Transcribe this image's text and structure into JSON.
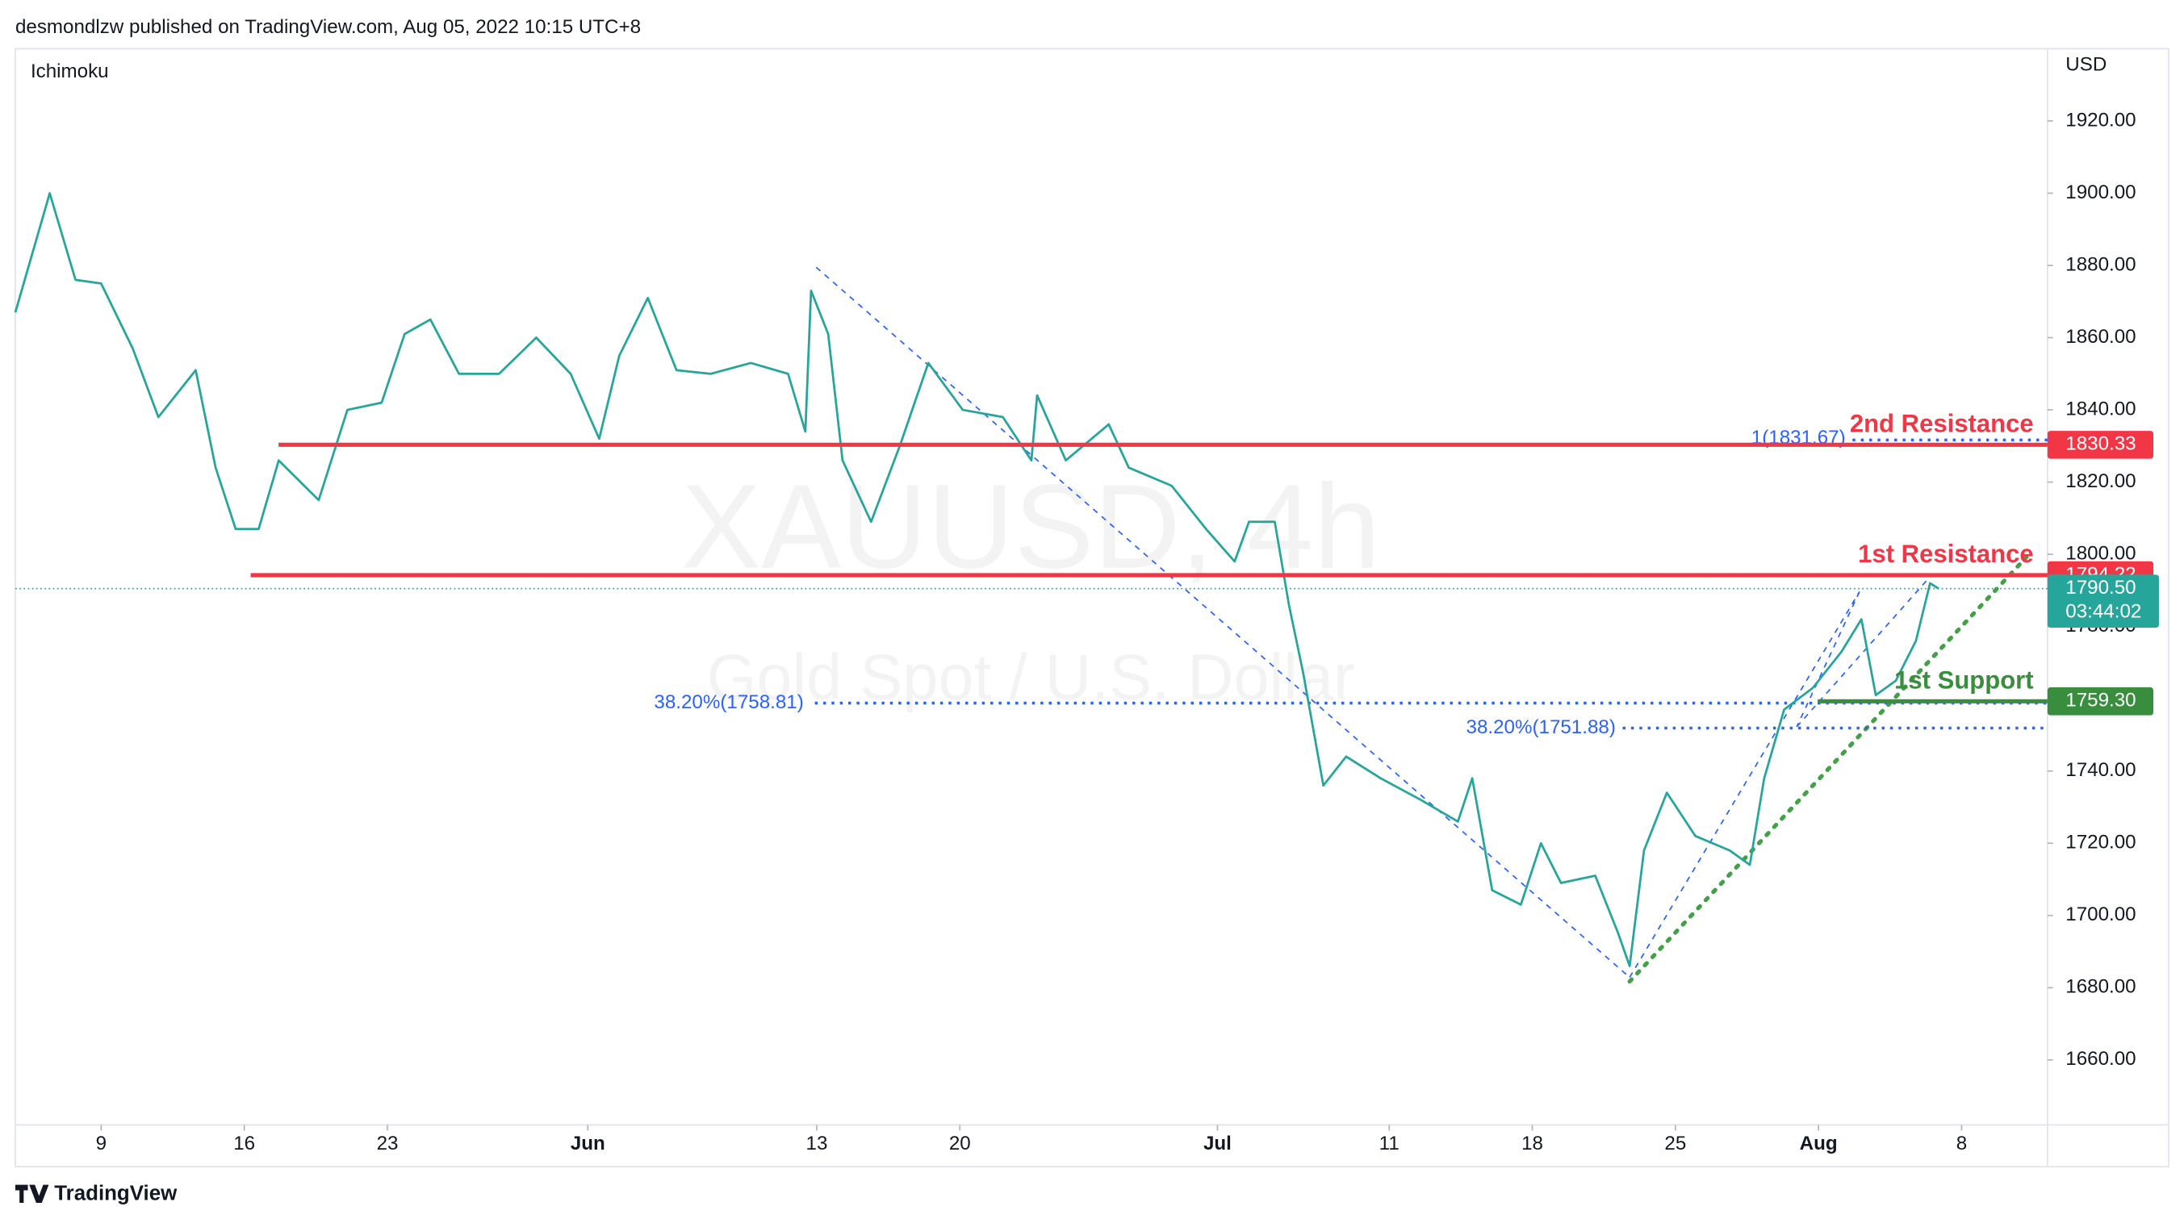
{
  "header": "desmondlzw published on TradingView.com, Aug 05, 2022 10:15 UTC+8",
  "footer": "TradingView",
  "chart_data": {
    "type": "line",
    "title": "XAUUSD, 4h",
    "subtitle": "Gold Spot / U.S. Dollar",
    "indicator": "Ichimoku",
    "currency": "USD",
    "color": "#26a69a",
    "x": [
      -3,
      -1.8,
      -0.9,
      0,
      1.1,
      2,
      3.3,
      4,
      4.7,
      5.5,
      6.2,
      7.6,
      8.6,
      9.8,
      10.6,
      11.5,
      12.5,
      13.9,
      15.2,
      16.4,
      17.4,
      18.1,
      19.1,
      20.1,
      21.3,
      22.7,
      24,
      24.6,
      24.8,
      25.4,
      25.9,
      26.9,
      27.9,
      28.9,
      30.1,
      31.5,
      32.5,
      32.7,
      33.7,
      35.2,
      35.9,
      37.4,
      38.6,
      39.6,
      40.1,
      41,
      41.5,
      42,
      42.7,
      43.5,
      44.7,
      46.1,
      47.4,
      47.9,
      48.6,
      49.6,
      50.3,
      51,
      52.2,
      53,
      53.4,
      53.9,
      54.7,
      55.7,
      56.9,
      57.6,
      58.1,
      58.8,
      59.8,
      60.8,
      61.5,
      62,
      62.7,
      63.4,
      63.9,
      64.2
    ],
    "values": [
      1867,
      1900,
      1876,
      1875,
      1857,
      1838,
      1851,
      1824,
      1807,
      1807,
      1826,
      1815,
      1840,
      1842,
      1861,
      1865,
      1850,
      1850,
      1860,
      1850,
      1832,
      1855,
      1871,
      1851,
      1850,
      1853,
      1850,
      1834,
      1873,
      1861,
      1826,
      1809,
      1830,
      1853,
      1840,
      1838,
      1826,
      1844,
      1826,
      1836,
      1824,
      1819,
      1807,
      1798,
      1809,
      1809,
      1786,
      1767,
      1736,
      1744,
      1738,
      1732,
      1726,
      1738,
      1707,
      1703,
      1720,
      1709,
      1711,
      1695,
      1686,
      1718,
      1734,
      1722,
      1718,
      1714,
      1738,
      1757,
      1763,
      1773,
      1782,
      1761,
      1765,
      1776,
      1792,
      1790.5
    ],
    "xlim": [
      -3,
      68
    ],
    "xticks": [
      {
        "value": 0,
        "label": "9"
      },
      {
        "value": 5,
        "label": "16"
      },
      {
        "value": 10,
        "label": "23"
      },
      {
        "value": 17,
        "label": "Jun"
      },
      {
        "value": 25,
        "label": "13"
      },
      {
        "value": 30,
        "label": "20"
      },
      {
        "value": 39,
        "label": "Jul"
      },
      {
        "value": 45,
        "label": "11"
      },
      {
        "value": 50,
        "label": "18"
      },
      {
        "value": 55,
        "label": "25"
      },
      {
        "value": 60,
        "label": "Aug"
      },
      {
        "value": 65,
        "label": "8"
      }
    ],
    "ylim": [
      1642,
      1940
    ],
    "yticks": [
      {
        "value": 1660,
        "label": "1660.00"
      },
      {
        "value": 1680,
        "label": "1680.00"
      },
      {
        "value": 1700,
        "label": "1700.00"
      },
      {
        "value": 1720,
        "label": "1720.00"
      },
      {
        "value": 1740,
        "label": "1740.00"
      },
      {
        "value": 1760,
        "label": "1760.00"
      },
      {
        "value": 1780,
        "label": "1780.00"
      },
      {
        "value": 1800,
        "label": "1800.00"
      },
      {
        "value": 1820,
        "label": "1820.00"
      },
      {
        "value": 1840,
        "label": "1840.00"
      },
      {
        "value": 1860,
        "label": "1860.00"
      },
      {
        "value": 1880,
        "label": "1880.00"
      },
      {
        "value": 1900,
        "label": "1900.00"
      },
      {
        "value": 1920,
        "label": "1920.00"
      }
    ],
    "levels": [
      {
        "name": "2nd Resistance",
        "value": 1830.33,
        "color": "#f23645"
      },
      {
        "name": "1st Resistance",
        "value": 1794.22,
        "color": "#f23645"
      },
      {
        "name": "1st Support",
        "value": 1759.3,
        "value_label": "1759.30",
        "color": "#388e3c"
      }
    ],
    "fib_levels": [
      {
        "label": "1(1831.67)",
        "value": 1831.67
      },
      {
        "label": "38.20%(1758.81)",
        "value": 1758.81
      },
      {
        "label": "38.20%(1751.88)",
        "value": 1751.88
      }
    ],
    "fib_color": "#2962ff",
    "last_price": {
      "value": 1790.5,
      "label": "1790.50"
    },
    "countdown": "03:44:02"
  }
}
